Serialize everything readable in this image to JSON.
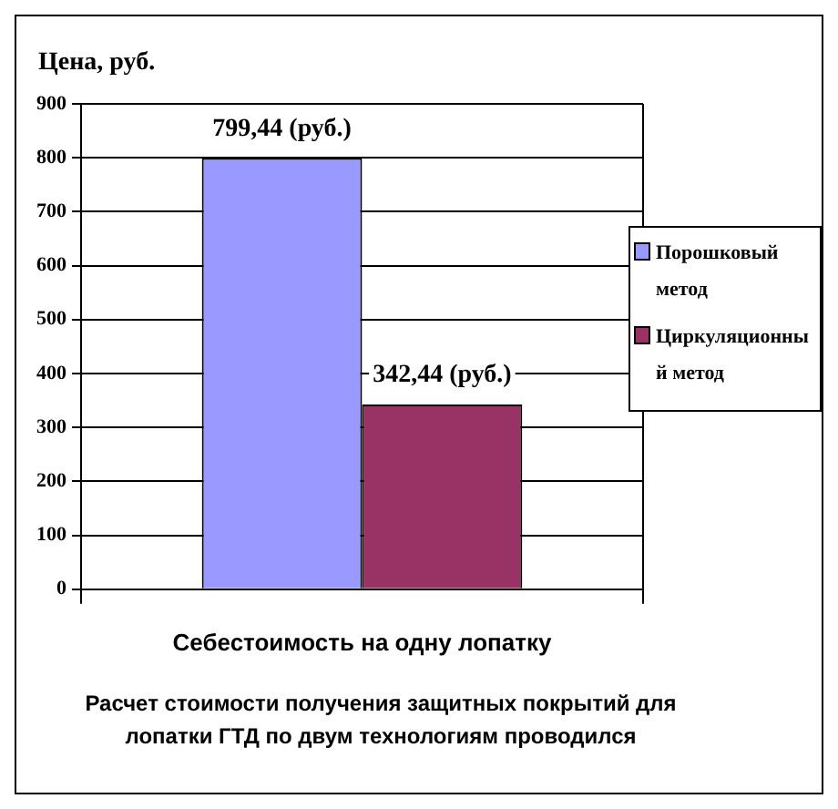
{
  "chart_data": {
    "type": "bar",
    "ylabel": "Цена, руб.",
    "categories": [
      "Себестоимость на одну лопатку"
    ],
    "series": [
      {
        "name": "Порошковый метод",
        "color": "#9999ff",
        "values": [
          799.44
        ],
        "value_labels": [
          "799,44 (руб.)"
        ]
      },
      {
        "name": "Циркуляционный метод",
        "color": "#993366",
        "values": [
          342.44
        ],
        "value_labels": [
          "342,44 (руб.)"
        ]
      }
    ],
    "ylim": [
      0,
      900
    ],
    "yticks": [
      0,
      100,
      200,
      300,
      400,
      500,
      600,
      700,
      800,
      900
    ],
    "grid": "y",
    "legend": "right",
    "annotations": [
      "Расчет стоимости получения защитных покрытий для лопатки ГТД по двум технологиям проводился"
    ]
  }
}
